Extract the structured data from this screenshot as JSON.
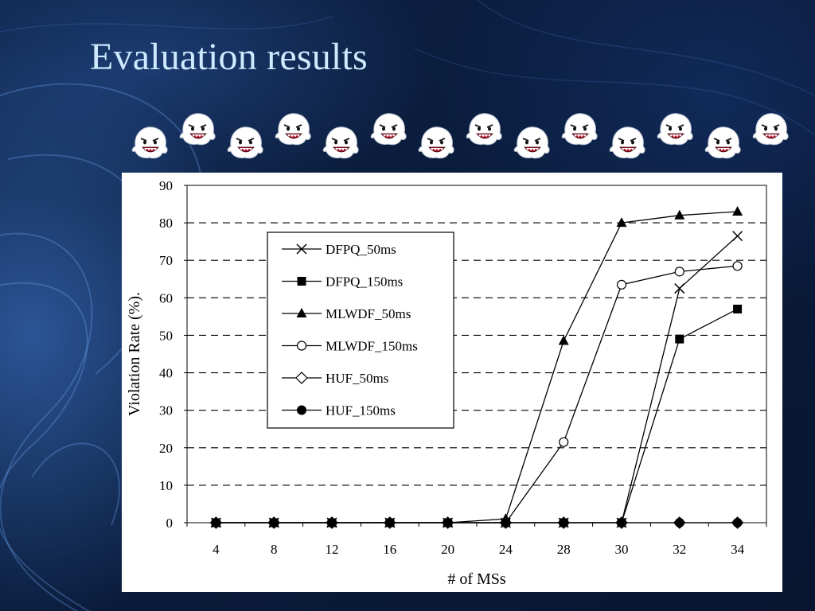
{
  "slide": {
    "title": "Evaluation results",
    "ghost_icon_count": 14
  },
  "chart_data": {
    "type": "line",
    "x": [
      "4",
      "8",
      "12",
      "16",
      "20",
      "24",
      "28",
      "30",
      "32",
      "34"
    ],
    "xlabel": "# of MSs",
    "ylabel": "Violation Rate (%).",
    "ylim": [
      0,
      90
    ],
    "yticks": [
      0,
      10,
      20,
      30,
      40,
      50,
      60,
      70,
      80,
      90
    ],
    "grid": "horizontal dashed",
    "legend_position": "upper-left",
    "series": [
      {
        "name": "DFPQ_50ms",
        "marker": "x",
        "values": [
          0,
          0,
          0,
          0,
          0,
          0,
          0,
          0,
          62.5,
          76.5
        ]
      },
      {
        "name": "DFPQ_150ms",
        "marker": "square",
        "values": [
          0,
          0,
          0,
          0,
          0,
          0,
          0,
          0,
          49,
          57
        ]
      },
      {
        "name": "MLWDF_50ms",
        "marker": "triangle",
        "values": [
          0,
          0,
          0,
          0,
          0,
          1,
          48.5,
          80,
          82,
          83
        ]
      },
      {
        "name": "MLWDF_150ms",
        "marker": "circle-open",
        "values": [
          0,
          0,
          0,
          0,
          0,
          0,
          21.5,
          63.5,
          67,
          68.5
        ]
      },
      {
        "name": "HUF_50ms",
        "marker": "diamond-open",
        "values": [
          0,
          0,
          0,
          0,
          0,
          0,
          0,
          0,
          0,
          0
        ]
      },
      {
        "name": "HUF_150ms",
        "marker": "circle-filled",
        "values": [
          0,
          0,
          0,
          0,
          0,
          0,
          0,
          0,
          0,
          0
        ]
      }
    ]
  }
}
